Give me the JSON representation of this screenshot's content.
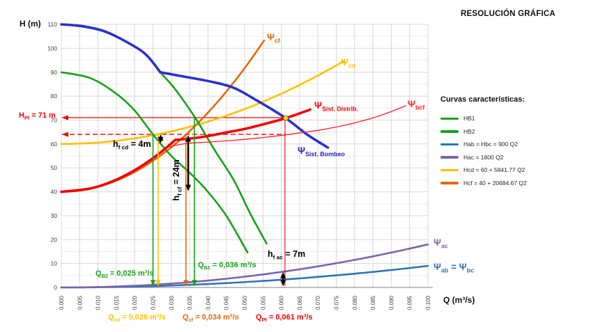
{
  "title": "RESOLUCIÓN GRÁFICA",
  "axes": {
    "y_label": "H (m)",
    "x_label": "Q (m³/s)"
  },
  "legend": {
    "title": "Curvas características:",
    "items": [
      {
        "label": "HB1",
        "color": "#16A216"
      },
      {
        "label": "HB2",
        "color": "#16A216"
      },
      {
        "label": "Hab = Hbc = 900 Q2",
        "color": "#2E75B6"
      },
      {
        "label": "Hac = 1800 Q2",
        "color": "#7C64AC"
      },
      {
        "label": "Hcd = 60 + 5841.77 Q2",
        "color": "#FFC000"
      },
      {
        "label": "Hcf = 40 + 20684.67 Q2",
        "color": "#E2690B"
      }
    ]
  },
  "labels": {
    "hpf": {
      "p1": "H",
      "s1": "Pf",
      "p2": " = 71 m"
    },
    "qb2": {
      "p1": "Q",
      "s1": "B2",
      "p2": " = 0,025 m³/s"
    },
    "qb1": {
      "p1": "Q",
      "s1": "B1",
      "p2": " = 0,036 m³/s"
    },
    "qcd": {
      "p1": "Q",
      "s1": "cd",
      "p2": " = 0,026 m³/s"
    },
    "qcf": {
      "p1": "Q",
      "s1": "cf",
      "p2": " = 0,034 m³/s"
    },
    "qpf": {
      "p1": "Q",
      "s1": "Pf",
      "p2": " = 0,061 m³/s"
    },
    "hfcd": {
      "p1": "h",
      "s1": "f cd",
      "p2": " = 4m"
    },
    "hfcf": {
      "p1": "h",
      "s1": "f cf",
      "p2": " = 24m"
    },
    "hfac": {
      "p1": "h",
      "s1": "f ac",
      "p2": " = 7m"
    },
    "psi_cf": {
      "p1": "Ψ",
      "s1": "cf"
    },
    "psi_cd": {
      "p1": "Ψ",
      "s1": "cd"
    },
    "psi_distrib": {
      "p1": "Ψ",
      "s1": "Sist. Distrib."
    },
    "psi_bcf": {
      "p1": "Ψ",
      "s1": "bcf"
    },
    "psi_bombeo": {
      "p1": "Ψ",
      "s1": "Sist. Bombeo"
    },
    "psi_ac": {
      "p1": "Ψ",
      "s1": "ac"
    },
    "psi_ab": {
      "p1": "Ψ",
      "s1": "ab",
      "p2": " = Ψ",
      "s2": "bc"
    }
  },
  "chart_data": {
    "type": "line",
    "title": "RESOLUCIÓN GRÁFICA",
    "xlabel": "Q (m³/s)",
    "ylabel": "H (m)",
    "xlim": [
      0,
      0.1
    ],
    "ylim": [
      0,
      110
    ],
    "grid": true,
    "legend_position": "right",
    "x_ticks": [
      "0.000",
      "0.005",
      "0.010",
      "0.015",
      "0.020",
      "0.025",
      "0.030",
      "0.035",
      "0.040",
      "0.045",
      "0.050",
      "0.055",
      "0.060",
      "0.065",
      "0.070",
      "0.075",
      "0.080",
      "0.085",
      "0.090",
      "0.095",
      "0.100"
    ],
    "y_ticks": [
      "0",
      "10",
      "20",
      "30",
      "40",
      "50",
      "60",
      "70",
      "80",
      "90",
      "100",
      "110"
    ],
    "operating_values": {
      "H_Pf_m": 71,
      "Q_Pf_m3s": 0.061,
      "Q_B1_m3s": 0.036,
      "Q_B2_m3s": 0.025,
      "Q_cd_m3s": 0.026,
      "Q_cf_m3s": 0.034,
      "hf_cd_m": 4,
      "hf_cf_m": 24,
      "hf_ac_m": 7
    },
    "curves": [
      {
        "name": "Hab-Hbc",
        "equation": "H = 900 Q^2",
        "color": "#2E75B6",
        "width": 2.6,
        "quad": {
          "a": 0,
          "k": 900,
          "q0": 0,
          "q1": 0.1
        }
      },
      {
        "name": "Hac",
        "equation": "H = 1800 Q^2",
        "color": "#7C64AC",
        "width": 2.6,
        "quad": {
          "a": 0,
          "k": 1800,
          "q0": 0,
          "q1": 0.1
        }
      },
      {
        "name": "Hcd",
        "equation": "H = 60 + 5841.77 Q^2",
        "color": "#FFC000",
        "width": 2.6,
        "quad": {
          "a": 60,
          "k": 5841.77,
          "q0": 0,
          "q1": 0.077
        }
      },
      {
        "name": "Hcf",
        "equation": "H = 40 + 20684.67 Q^2",
        "color": "#E2690B",
        "width": 2.6,
        "quad": {
          "a": 40,
          "k": 20684.67,
          "q0": 0,
          "q1": 0.0553
        }
      },
      {
        "name": "HB2",
        "color": "#16A216",
        "width": 2.6,
        "segments": [
          [
            [
              0,
              90
            ],
            [
              0.008,
              87.5
            ],
            [
              0.015,
              81
            ],
            [
              0.02,
              74
            ],
            [
              0.025,
              64
            ],
            [
              0.03,
              55
            ],
            [
              0.035,
              48
            ],
            [
              0.0397,
              40.5
            ],
            [
              0.045,
              30
            ],
            [
              0.0508,
              14.6
            ]
          ]
        ]
      },
      {
        "name": "HB1",
        "color": "#16A216",
        "width": 2.6,
        "segments": [
          [
            [
              0,
              110
            ],
            [
              0.006,
              109
            ],
            [
              0.012,
              106.8
            ],
            [
              0.018,
              102.5
            ],
            [
              0.023,
              97.5
            ],
            [
              0.027,
              90
            ],
            [
              0.031,
              83
            ],
            [
              0.0365,
              71
            ],
            [
              0.042,
              57
            ],
            [
              0.047,
              45
            ],
            [
              0.0515,
              31
            ],
            [
              0.056,
              18.3
            ]
          ]
        ]
      },
      {
        "name": "Psi_Sist_Bombeo",
        "color": "#2B32CC",
        "width": 3.6,
        "segments": [
          [
            [
              0,
              110
            ],
            [
              0.006,
              109.2
            ],
            [
              0.012,
              107
            ],
            [
              0.018,
              102.5
            ],
            [
              0.023,
              97.5
            ],
            [
              0.027,
              90
            ]
          ],
          [
            [
              0.027,
              90
            ],
            [
              0.033,
              88.3
            ],
            [
              0.041,
              86
            ],
            [
              0.047,
              83.5
            ],
            [
              0.053,
              78.5
            ],
            [
              0.061,
              71
            ],
            [
              0.067,
              64
            ],
            [
              0.0727,
              58.5
            ]
          ]
        ]
      },
      {
        "name": "Psi_bcf",
        "color": "#FF2020",
        "width": 1.3,
        "segments": [
          [
            [
              0.0295,
              58.8
            ],
            [
              0.034,
              60.2
            ],
            [
              0.04,
              60.8
            ],
            [
              0.046,
              61.4
            ],
            [
              0.052,
              62.2
            ],
            [
              0.058,
              63.2
            ],
            [
              0.064,
              64.4
            ],
            [
              0.07,
              65.7
            ],
            [
              0.076,
              67.4
            ],
            [
              0.082,
              69.6
            ],
            [
              0.088,
              72.4
            ],
            [
              0.094,
              76
            ]
          ]
        ]
      },
      {
        "name": "Psi_Sist_Distrib",
        "color": "#F20000",
        "width": 3.6,
        "segments": [
          [
            [
              0,
              40
            ],
            [
              0.008,
              41.4
            ],
            [
              0.014,
              44.4
            ],
            [
              0.02,
              49
            ],
            [
              0.026,
              55.2
            ],
            [
              0.0311,
              61.7
            ]
          ],
          [
            [
              0.0311,
              61.7
            ],
            [
              0.036,
              62.4
            ],
            [
              0.04,
              63.3
            ],
            [
              0.045,
              64.8
            ],
            [
              0.05,
              66.3
            ],
            [
              0.055,
              68.2
            ],
            [
              0.061,
              70.7
            ],
            [
              0.0679,
              74.4
            ]
          ]
        ]
      }
    ],
    "guides": [
      {
        "kind": "hline",
        "layer": "under",
        "h": 71,
        "q0": 0,
        "q1": 0.0612,
        "color": "#F20000",
        "dash": false,
        "arrow": "left",
        "w": 1.2
      },
      {
        "kind": "hline",
        "layer": "under",
        "h": 64,
        "q0": 0,
        "q1": 0.0612,
        "color": "#F20000",
        "dash": true,
        "arrow": "left",
        "w": 1.4
      },
      {
        "kind": "vline",
        "layer": "over",
        "q": 0.025,
        "h0": 64,
        "h1": 0.8,
        "color": "#16A216",
        "arrow": "down",
        "w": 1.6
      },
      {
        "kind": "vline",
        "layer": "over",
        "q": 0.0264,
        "h0": 64,
        "h1": 0.8,
        "color": "#FFC000",
        "arrow": "down",
        "w": 1.6
      },
      {
        "kind": "vline",
        "layer": "over",
        "q": 0.034,
        "h0": 64,
        "h1": 0.8,
        "color": "#E2690B",
        "arrow": "down",
        "w": 1.6
      },
      {
        "kind": "vline",
        "layer": "over",
        "q": 0.0363,
        "h0": 71,
        "h1": 0.8,
        "color": "#16A216",
        "arrow": "down",
        "w": 1.6
      },
      {
        "kind": "vline",
        "layer": "over",
        "q": 0.061,
        "h0": 71,
        "h1": 0.5,
        "color": "#F20000",
        "arrow": "none",
        "w": 1.1
      },
      {
        "kind": "dblarrow",
        "layer": "over",
        "q": 0.0271,
        "h0": 60.3,
        "h1": 64,
        "color": "#000000",
        "w": 2
      },
      {
        "kind": "dblarrow",
        "layer": "over",
        "q": 0.0346,
        "h0": 40.3,
        "h1": 63.6,
        "color": "#000000",
        "w": 2.4
      },
      {
        "kind": "dblarrow",
        "layer": "over",
        "q": 0.0605,
        "h0": 0.5,
        "h1": 6.5,
        "color": "#000000",
        "w": 2.4
      }
    ],
    "operating_point": {
      "q": 0.0612,
      "h": 70.8,
      "fill": "#FFE800",
      "stroke": "#7A6A00"
    }
  }
}
